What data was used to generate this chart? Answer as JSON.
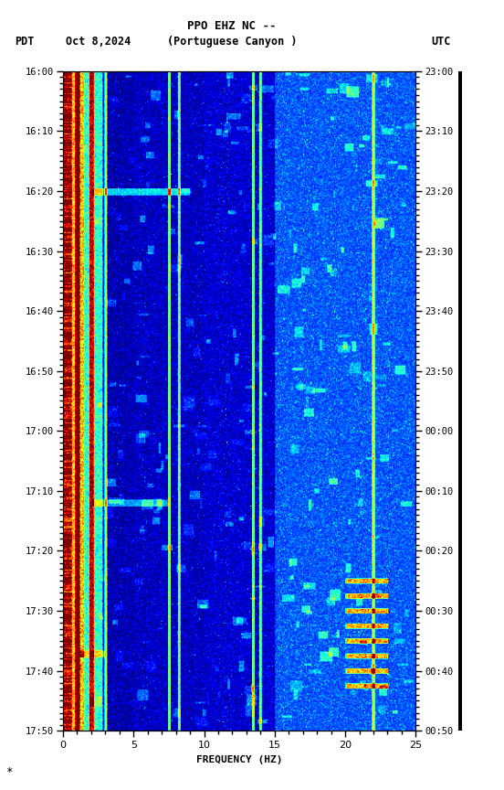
{
  "title_line1": "PPO EHZ NC --",
  "title_line2": "(Portuguese Canyon )",
  "date_label": "Oct 8,2024",
  "left_label": "PDT",
  "right_label": "UTC",
  "ylabel_left_ticks": [
    "16:00",
    "16:10",
    "16:20",
    "16:30",
    "16:40",
    "16:50",
    "17:00",
    "17:10",
    "17:20",
    "17:30",
    "17:40",
    "17:50"
  ],
  "ylabel_right_ticks": [
    "23:00",
    "23:10",
    "23:20",
    "23:30",
    "23:40",
    "23:50",
    "00:00",
    "00:10",
    "00:20",
    "00:30",
    "00:40",
    "00:50"
  ],
  "xlabel": "FREQUENCY (HZ)",
  "xmin": 0,
  "xmax": 25,
  "freq_resolution": 400,
  "time_resolution": 660,
  "background_color": "#ffffff",
  "colormap": "jet",
  "seed": 42
}
